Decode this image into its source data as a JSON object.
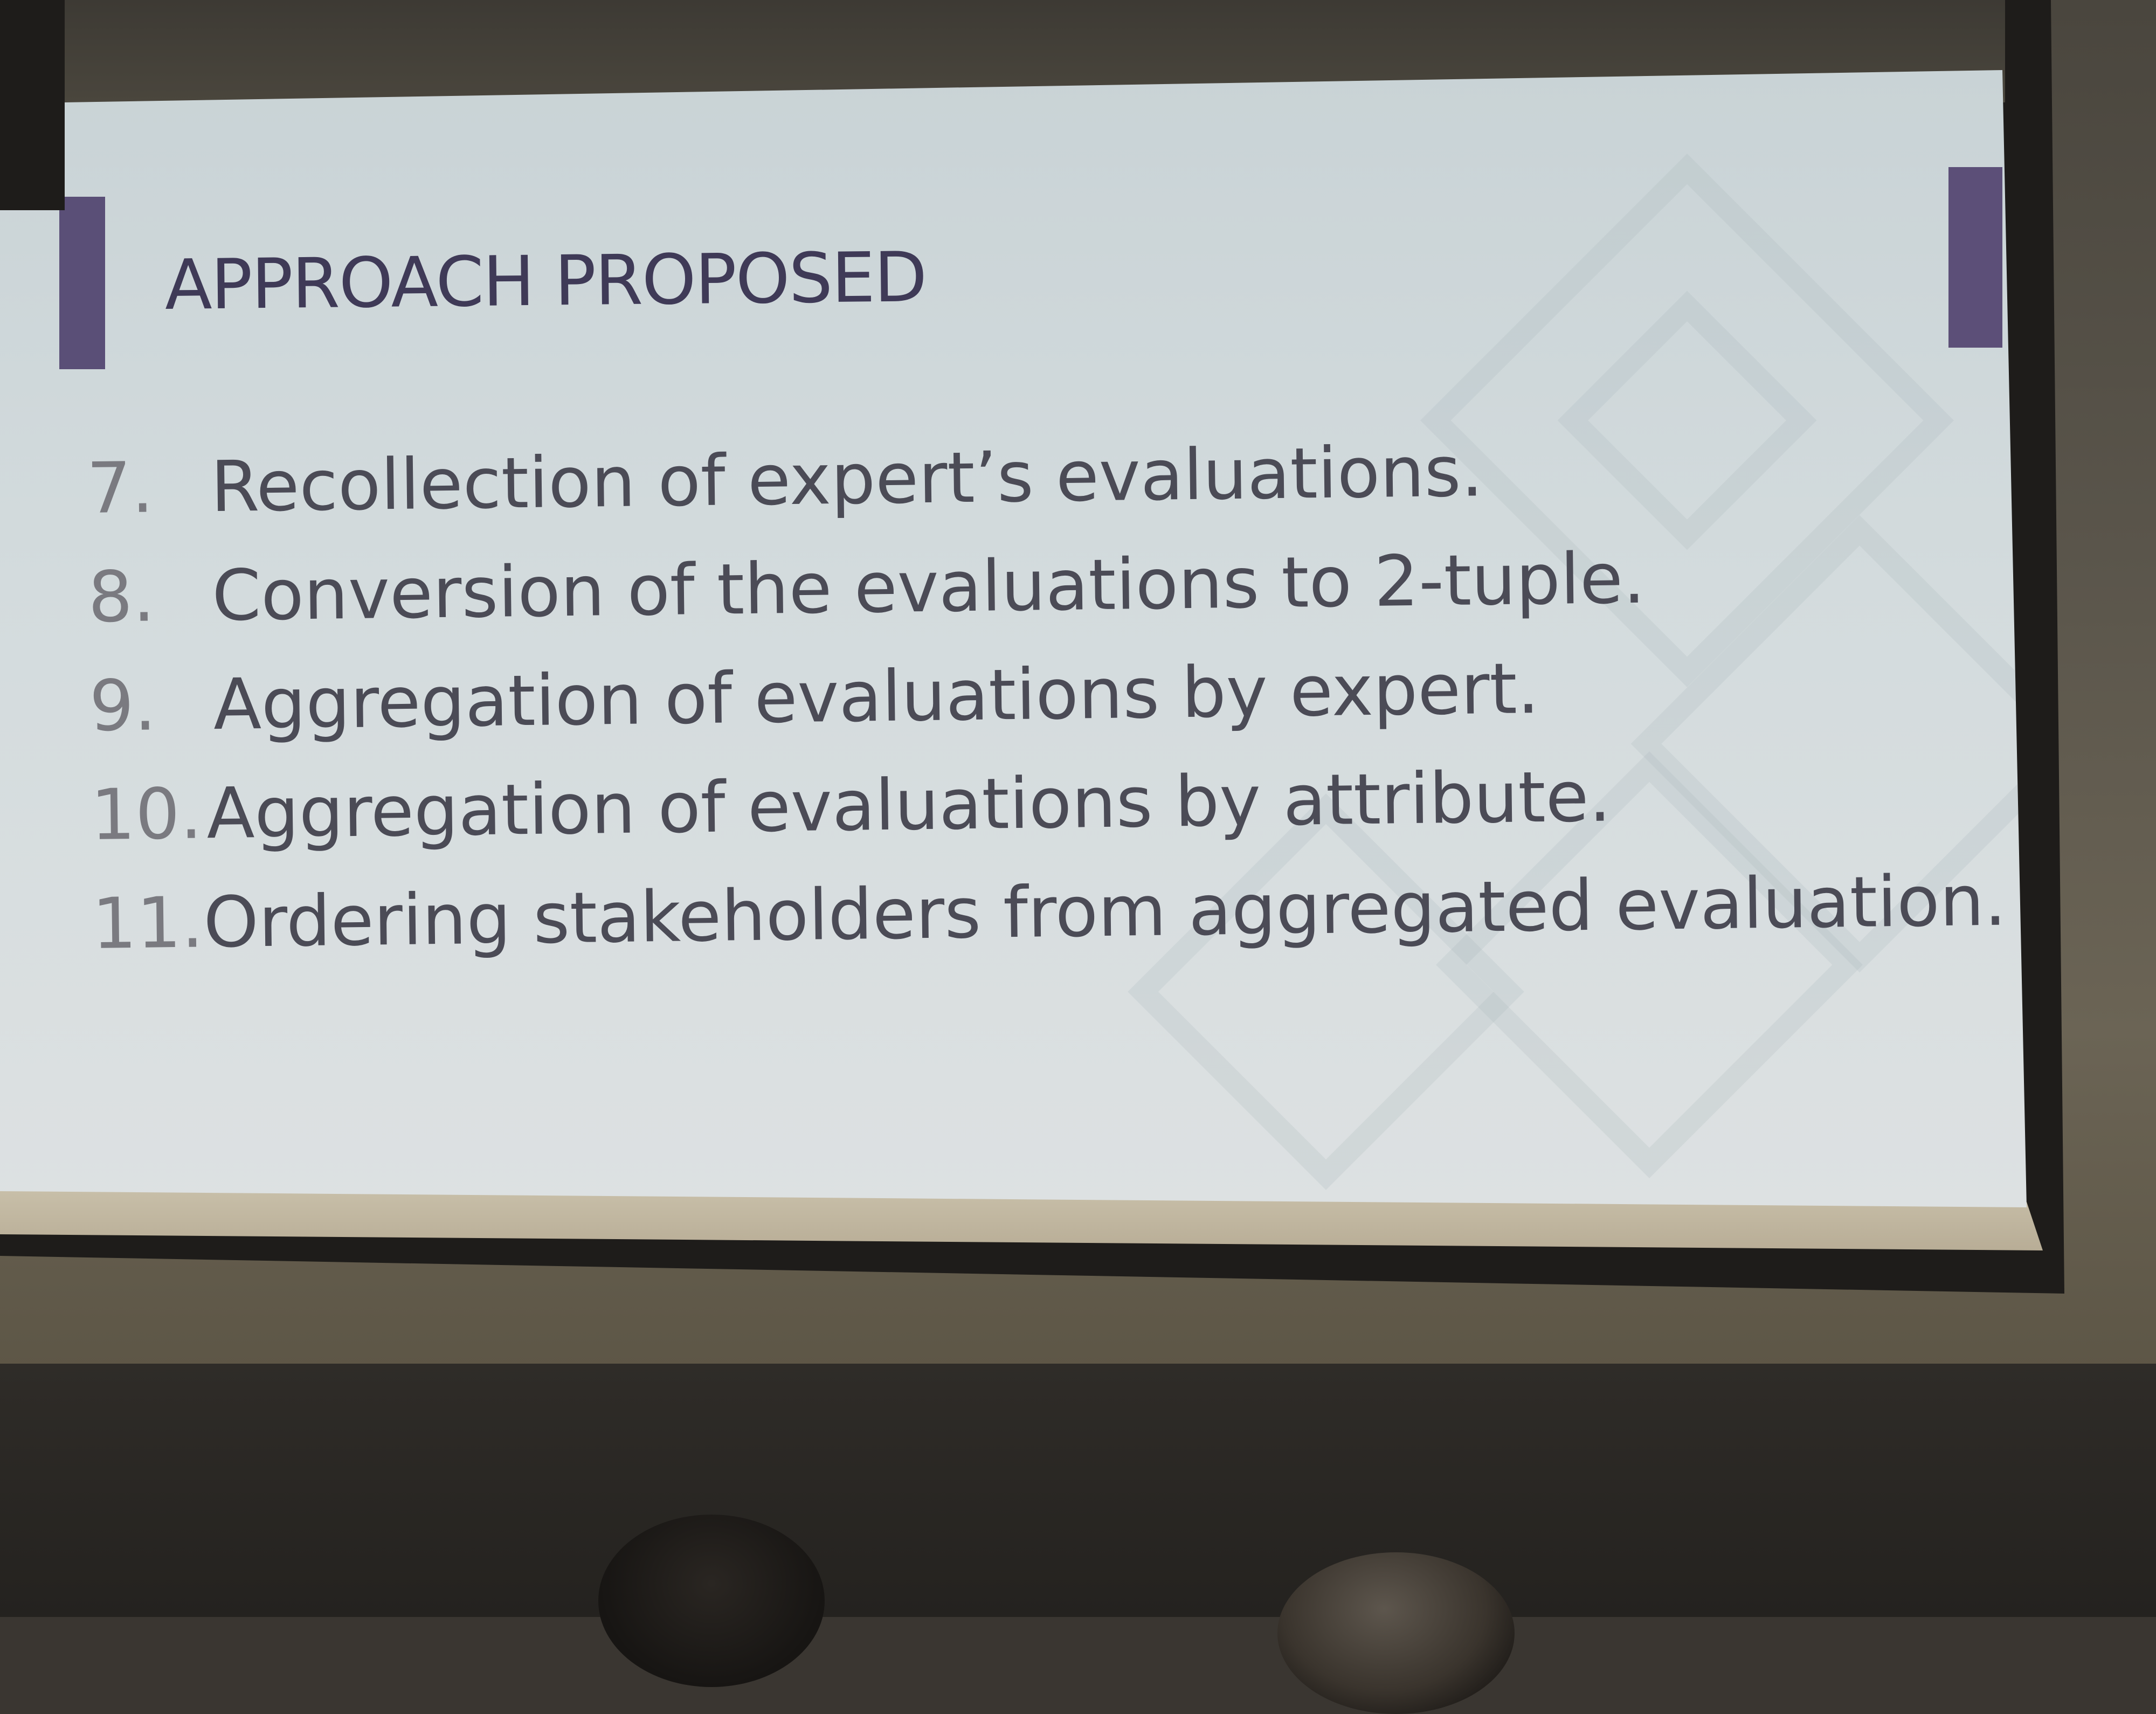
{
  "slide": {
    "title": "APPROACH PROPOSED",
    "items": [
      {
        "number": "7.",
        "text": "Recollection of expert’s evaluations."
      },
      {
        "number": "8.",
        "text": "Conversion of the evaluations to 2-tuple."
      },
      {
        "number": "9.",
        "text": "Aggregation of evaluations by expert."
      },
      {
        "number": "10.",
        "text": "Aggregation of evaluations by attribute."
      },
      {
        "number": "11.",
        "text": "Ordering stakeholders from aggregated evaluation."
      }
    ],
    "colors": {
      "accent": "#5a4f77",
      "title": "#3f3a57",
      "background": "#d3dbdd",
      "text": "#4b4b56"
    }
  }
}
